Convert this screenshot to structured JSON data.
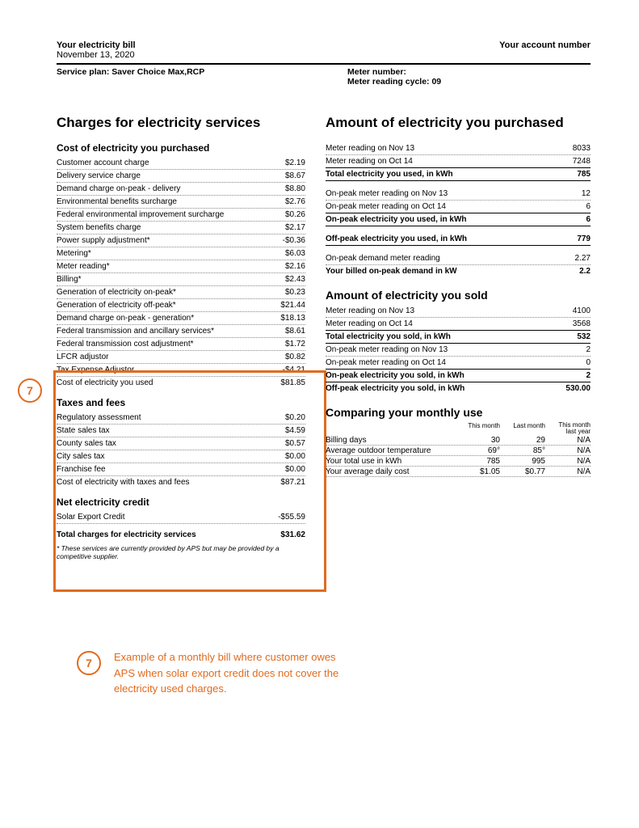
{
  "header": {
    "title_left": "Your electricity bill",
    "title_right": "Your account number",
    "date": "November 13, 2020",
    "service_plan_label": "Service plan: Saver Choice Max,RCP",
    "meter_number_label": "Meter number:",
    "meter_cycle_label": "Meter reading cycle: 09"
  },
  "callout": {
    "number": "7",
    "annotation_text": "Example of a monthly bill where customer owes APS when solar export credit does not cover the electricity used charges.",
    "highlight_color": "#e06b1f"
  },
  "left": {
    "main_title": "Charges for electricity services",
    "cost_title": "Cost of electricity you purchased",
    "cost_rows": [
      {
        "label": "Customer account charge",
        "val": "$2.19"
      },
      {
        "label": "Delivery service charge",
        "val": "$8.67"
      },
      {
        "label": "Demand charge on-peak - delivery",
        "val": "$8.80"
      },
      {
        "label": "Environmental benefits surcharge",
        "val": "$2.76"
      },
      {
        "label": "Federal environmental improvement surcharge",
        "val": "$0.26"
      },
      {
        "label": "System benefits charge",
        "val": "$2.17"
      },
      {
        "label": "Power supply adjustment*",
        "val": "-$0.36"
      },
      {
        "label": "Metering*",
        "val": "$6.03"
      },
      {
        "label": "Meter reading*",
        "val": "$2.16"
      },
      {
        "label": "Billing*",
        "val": "$2.43"
      },
      {
        "label": "Generation of electricity on-peak*",
        "val": "$0.23"
      },
      {
        "label": "Generation of electricity off-peak*",
        "val": "$21.44"
      },
      {
        "label": "Demand charge on-peak - generation*",
        "val": "$18.13"
      },
      {
        "label": "Federal transmission and ancillary services*",
        "val": "$8.61"
      },
      {
        "label": "Federal transmission cost adjustment*",
        "val": "$1.72"
      },
      {
        "label": "LFCR adjustor",
        "val": "$0.82"
      },
      {
        "label": "Tax Expense Adjustor",
        "val": "-$4.21"
      }
    ],
    "cost_subtotal": {
      "label": "Cost of electricity you used",
      "val": "$81.85"
    },
    "taxes_title": "Taxes and fees",
    "taxes_rows": [
      {
        "label": "Regulatory assessment",
        "val": "$0.20"
      },
      {
        "label": "State sales tax",
        "val": "$4.59"
      },
      {
        "label": "County sales tax",
        "val": "$0.57"
      },
      {
        "label": "City sales tax",
        "val": "$0.00"
      },
      {
        "label": "Franchise fee",
        "val": "$0.00"
      }
    ],
    "taxes_subtotal": {
      "label": "Cost of electricity with taxes and fees",
      "val": "$87.21"
    },
    "credit_title": "Net electricity credit",
    "credit_row": {
      "label": "Solar Export Credit",
      "val": "-$55.59"
    },
    "total": {
      "label": "Total charges for electricity services",
      "val": "$31.62"
    },
    "footnote": "* These services are currently provided by APS but may be provided by a competitive supplier."
  },
  "right": {
    "main_title": "Amount of electricity you purchased",
    "purchased": [
      {
        "label": "Meter reading on Nov 13",
        "val": "8033",
        "style": "dotted"
      },
      {
        "label": "Meter reading on Oct 14",
        "val": "7248",
        "style": "solid"
      },
      {
        "label": "Total electricity you used, in kWh",
        "val": "785",
        "style": "solid",
        "bold": true
      }
    ],
    "onpeak": [
      {
        "label": "On-peak meter reading on Nov 13",
        "val": "12",
        "style": "dotted"
      },
      {
        "label": "On-peak meter reading on Oct 14",
        "val": "6",
        "style": "solid"
      },
      {
        "label": "On-peak electricity you used, in kWh",
        "val": "6",
        "style": "solid",
        "bold": true
      }
    ],
    "offpeak": {
      "label": "Off-peak electricity you used, in kWh",
      "val": "779",
      "style": "solid",
      "bold": true
    },
    "demand": [
      {
        "label": "On-peak demand meter reading",
        "val": "2.27",
        "style": "dotted"
      },
      {
        "label": "Your billed on-peak demand in kW",
        "val": "2.2",
        "style": "nobord",
        "bold": true
      }
    ],
    "sold_title": "Amount of electricity you sold",
    "sold": [
      {
        "label": "Meter reading on Nov 13",
        "val": "4100",
        "style": "dotted"
      },
      {
        "label": "Meter reading on Oct 14",
        "val": "3568",
        "style": "solid"
      },
      {
        "label": "Total electricity you sold, in kWh",
        "val": "532",
        "style": "solid",
        "bold": true
      },
      {
        "label": "On-peak meter reading on Nov 13",
        "val": "2",
        "style": "dotted"
      },
      {
        "label": "On-peak meter reading on Oct 14",
        "val": "0",
        "style": "solid"
      },
      {
        "label": "On-peak electricity you sold, in kWh",
        "val": "2",
        "style": "solid",
        "bold": true
      },
      {
        "label": "Off-peak electricity you sold, in kWh",
        "val": "530.00",
        "style": "nobord",
        "bold": true
      }
    ],
    "compare_title": "Comparing your monthly use",
    "compare_headers": {
      "c2": "This month",
      "c3": "Last month",
      "c4a": "This month",
      "c4b": "last year"
    },
    "compare_rows": [
      {
        "c1": "Billing days",
        "c2": "30",
        "c3": "29",
        "c4": "N/A"
      },
      {
        "c1": "Average outdoor temperature",
        "c2": "69°",
        "c3": "85°",
        "c4": "N/A"
      },
      {
        "c1": "Your total use in kWh",
        "c2": "785",
        "c3": "995",
        "c4": "N/A"
      },
      {
        "c1": "Your average daily cost",
        "c2": "$1.05",
        "c3": "$0.77",
        "c4": "N/A"
      }
    ]
  }
}
